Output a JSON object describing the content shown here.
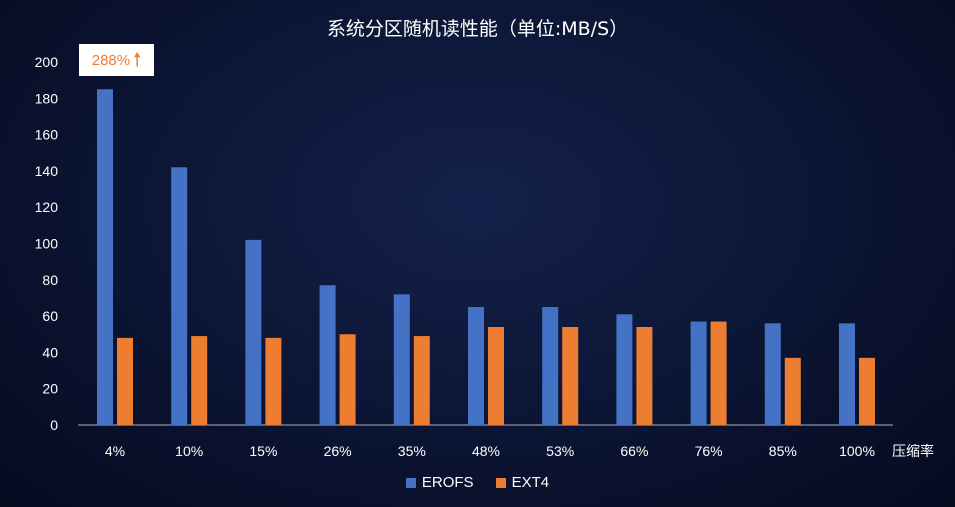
{
  "colors": {
    "erofs": "#4472c4",
    "ext4": "#ed7d31",
    "axis_text": "#ffffff",
    "axis_line": "#aab0c0"
  },
  "chart_data": {
    "type": "bar",
    "title": "系统分区随机读性能（单位:MB/S）",
    "xlabel": "压缩率",
    "ylabel": "",
    "categories": [
      "4%",
      "10%",
      "15%",
      "26%",
      "35%",
      "48%",
      "53%",
      "66%",
      "76%",
      "85%",
      "100%"
    ],
    "series": [
      {
        "name": "EROFS",
        "values": [
          185,
          142,
          102,
          77,
          72,
          65,
          65,
          61,
          57,
          56,
          56
        ]
      },
      {
        "name": "EXT4",
        "values": [
          48,
          49,
          48,
          50,
          49,
          54,
          54,
          54,
          57,
          37,
          37
        ]
      }
    ],
    "ylim": [
      0,
      200
    ],
    "yticks": [
      "0",
      "20",
      "40",
      "60",
      "80",
      "100",
      "120",
      "140",
      "160",
      "180",
      "200"
    ],
    "annotation": {
      "text": "288%",
      "icon": "up-arrow-icon"
    },
    "grid": false,
    "legend_position": "bottom"
  }
}
